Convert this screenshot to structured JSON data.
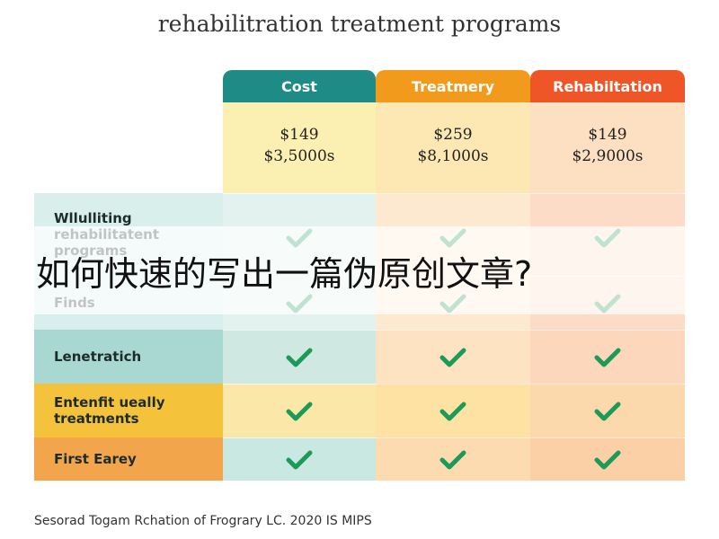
{
  "title": "rehabilitration treatment programs",
  "table": {
    "columns": [
      "Cost",
      "Treatmery",
      "Rehabiltation"
    ],
    "prices": [
      [
        "$149",
        "$3,5000s"
      ],
      [
        "$259",
        "$8,1000s"
      ],
      [
        "$149",
        "$2,9000s"
      ]
    ],
    "rows": [
      "Wllulliting rehabilitatent programs",
      "Finds",
      "Lenetratich",
      "Entenfit ueally treatments",
      "First Earey"
    ]
  },
  "banner": "如何快速的写出一篇伪原创文章?",
  "footer": "Sesorad Togam Rchation of Frograry LC. 2020 IS MIPS"
}
